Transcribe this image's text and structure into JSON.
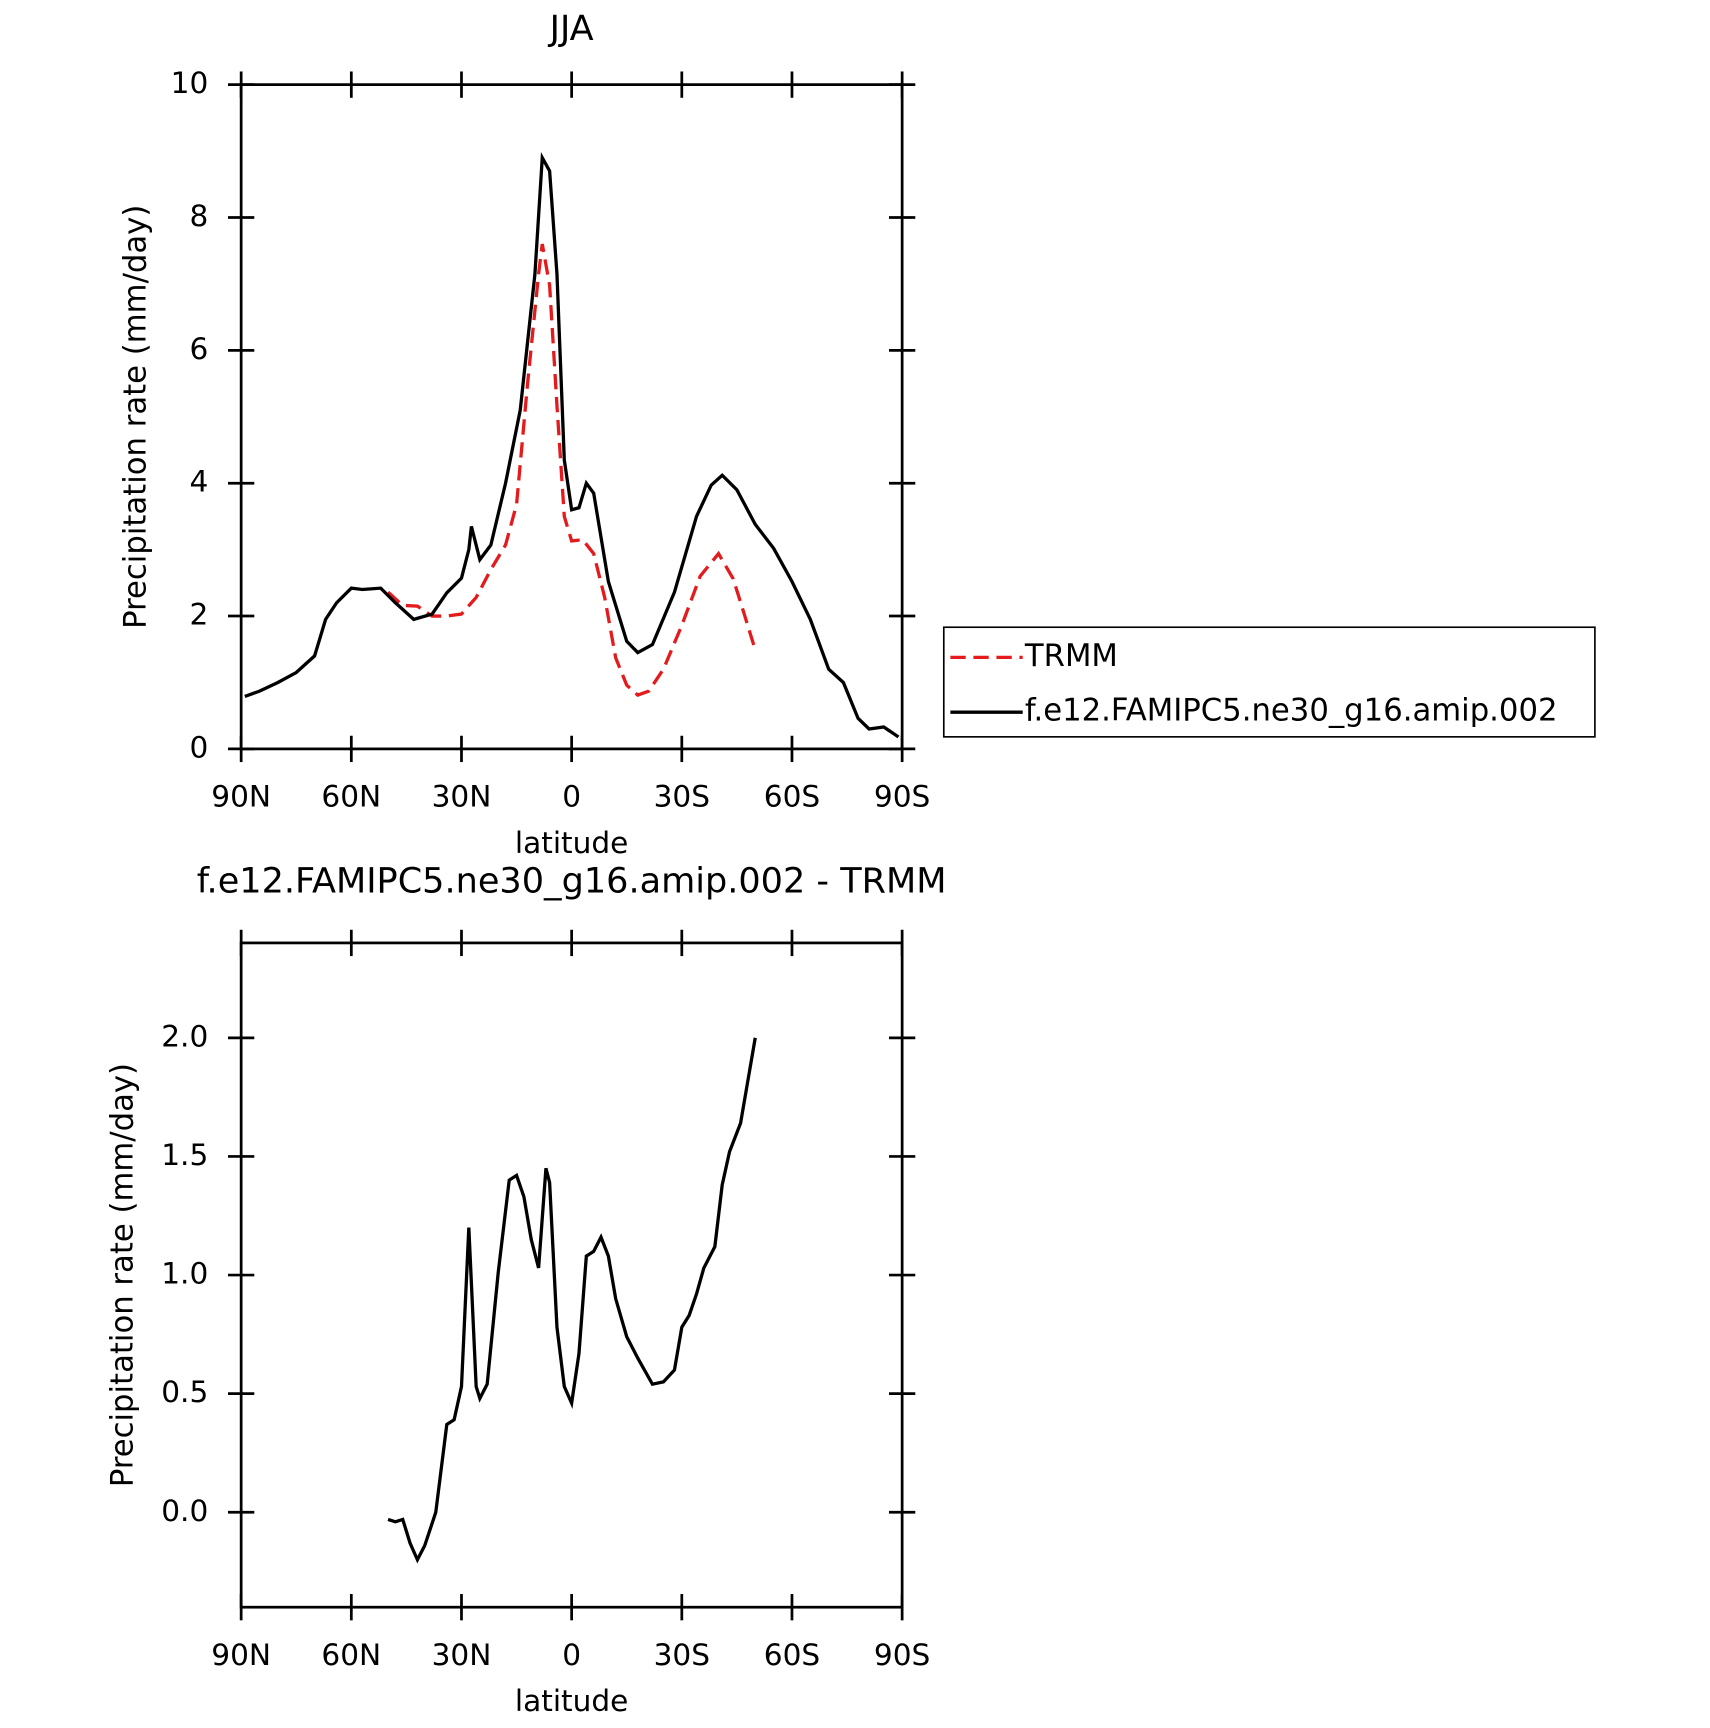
{
  "chart_data": [
    {
      "type": "line",
      "title": "JJA",
      "xlabel": "latitude",
      "ylabel": "Precipitation rate (mm/day)",
      "xlim": [
        90,
        -90
      ],
      "ylim": [
        0,
        10
      ],
      "xticks": [
        {
          "value": 90,
          "label": "90N"
        },
        {
          "value": 60,
          "label": "60N"
        },
        {
          "value": 30,
          "label": "30N"
        },
        0,
        {
          "value": -30,
          "label": "30S"
        },
        {
          "value": -60,
          "label": "60S"
        },
        {
          "value": -90,
          "label": "90S"
        }
      ],
      "yticks": [
        0,
        2,
        4,
        6,
        8,
        10
      ],
      "legend": "right",
      "series": [
        {
          "name": "TRMM",
          "color": "#e41a1c",
          "dash": true,
          "x": [
            50,
            46,
            42,
            38,
            34,
            30,
            26,
            22,
            18,
            15,
            12,
            9,
            8,
            6,
            4,
            2,
            0,
            -3,
            -6,
            -9,
            -12,
            -15,
            -18,
            -21,
            -25,
            -30,
            -35,
            -40,
            -44,
            -47,
            -50
          ],
          "values": [
            2.36,
            2.16,
            2.15,
            2.0,
            2.0,
            2.03,
            2.28,
            2.7,
            3.07,
            3.68,
            5.5,
            7.15,
            7.6,
            6.98,
            5.17,
            3.5,
            3.13,
            3.15,
            2.94,
            2.28,
            1.37,
            0.96,
            0.81,
            0.87,
            1.2,
            1.86,
            2.6,
            2.94,
            2.56,
            2.03,
            1.49
          ]
        },
        {
          "name": "f.e12.FAMIPC5.ne30_g16.amip.002",
          "color": "#000000",
          "dash": false,
          "x": [
            89,
            85,
            80,
            75,
            70,
            67,
            64,
            60,
            57,
            52,
            48,
            43,
            38,
            34,
            30,
            28,
            27.3,
            25,
            22,
            18,
            14,
            10,
            8,
            6,
            4,
            2,
            0,
            -2,
            -4,
            -6,
            -10,
            -15,
            -18,
            -22,
            -28,
            -34,
            -38,
            -41,
            -45,
            -50,
            -55,
            -60,
            -65,
            -70,
            -74,
            -78,
            -81,
            -85,
            -89
          ],
          "values": [
            0.79,
            0.87,
            1.0,
            1.15,
            1.4,
            1.95,
            2.2,
            2.42,
            2.4,
            2.42,
            2.2,
            1.95,
            2.03,
            2.35,
            2.57,
            3.0,
            3.35,
            2.85,
            3.07,
            4.0,
            5.1,
            7.15,
            8.9,
            8.7,
            7.15,
            4.35,
            3.6,
            3.63,
            4.0,
            3.85,
            2.52,
            1.62,
            1.45,
            1.57,
            2.36,
            3.5,
            3.97,
            4.12,
            3.9,
            3.38,
            3.02,
            2.52,
            1.95,
            1.2,
            1.0,
            0.46,
            0.3,
            0.33,
            0.18
          ]
        }
      ]
    },
    {
      "type": "line",
      "title": "f.e12.FAMIPC5.ne30_g16.amip.002 - TRMM",
      "xlabel": "latitude",
      "ylabel": "Precipitation rate (mm/day)",
      "xlim": [
        90,
        -90
      ],
      "ylim": [
        -0.4,
        2.4
      ],
      "xticks": [
        {
          "value": 90,
          "label": "90N"
        },
        {
          "value": 60,
          "label": "60N"
        },
        {
          "value": 30,
          "label": "30N"
        },
        0,
        {
          "value": -30,
          "label": "30S"
        },
        {
          "value": -60,
          "label": "60S"
        },
        {
          "value": -90,
          "label": "90S"
        }
      ],
      "yticks": [
        {
          "value": 0,
          "label": "0.0"
        },
        0.5,
        {
          "value": 1,
          "label": "1.0"
        },
        1.5,
        {
          "value": 2,
          "label": "2.0"
        }
      ],
      "series": [
        {
          "color": "#000000",
          "dash": false,
          "x": [
            50,
            48,
            46,
            44,
            42,
            40,
            37,
            34,
            32,
            30,
            28,
            26,
            25,
            23,
            20,
            17,
            15,
            13,
            11,
            9,
            7,
            6,
            4,
            2,
            0,
            -2,
            -4,
            -6,
            -8,
            -10,
            -12,
            -15,
            -18,
            -22,
            -25,
            -28,
            -30,
            -32,
            -34,
            -36,
            -39,
            -41,
            -43,
            -46,
            -48,
            -50
          ],
          "values": [
            -0.03,
            -0.04,
            -0.03,
            -0.13,
            -0.2,
            -0.14,
            0.0,
            0.37,
            0.39,
            0.53,
            1.2,
            0.53,
            0.48,
            0.54,
            1.01,
            1.4,
            1.42,
            1.33,
            1.15,
            1.03,
            1.45,
            1.39,
            0.78,
            0.53,
            0.46,
            0.67,
            1.08,
            1.1,
            1.16,
            1.08,
            0.9,
            0.74,
            0.65,
            0.54,
            0.55,
            0.6,
            0.78,
            0.83,
            0.92,
            1.03,
            1.12,
            1.38,
            1.52,
            1.64,
            1.82,
            2.0
          ]
        }
      ]
    }
  ]
}
